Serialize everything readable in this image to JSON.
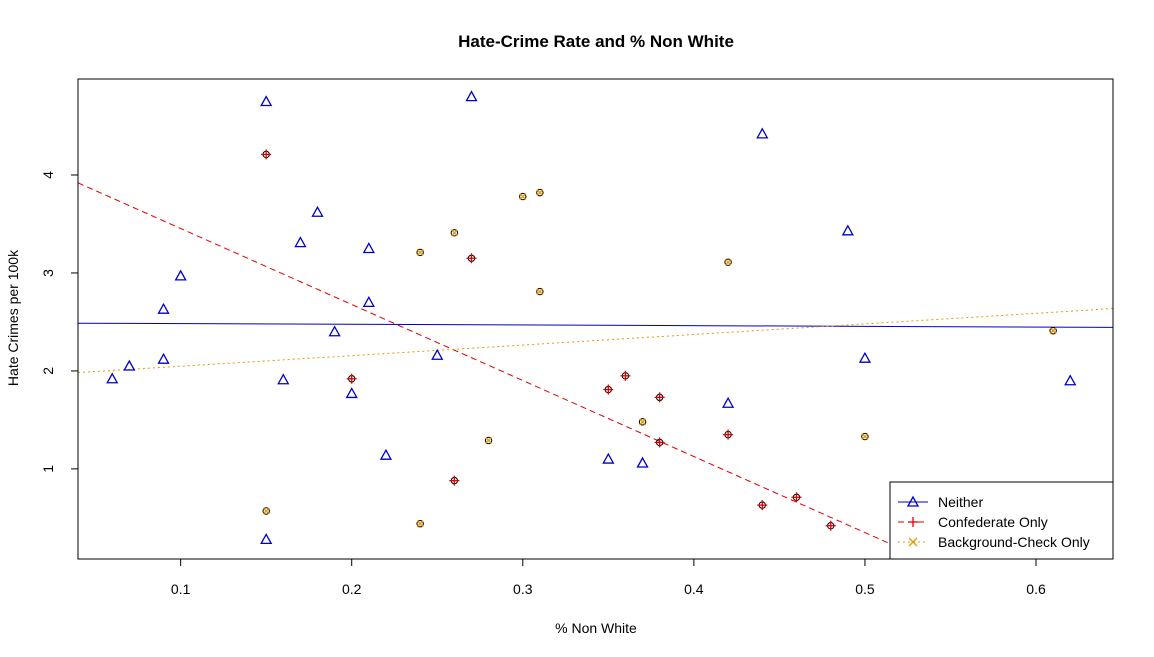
{
  "chart_data": {
    "type": "scatter",
    "title": "Hate-Crime Rate and % Non White",
    "xlabel": "% Non White",
    "ylabel": "Hate Crimes per 100k",
    "xlim": [
      0.04,
      0.645
    ],
    "ylim": [
      0.08,
      4.98
    ],
    "xticks": [
      0.1,
      0.2,
      0.3,
      0.4,
      0.5,
      0.6
    ],
    "xtick_labels": [
      "0.1",
      "0.2",
      "0.3",
      "0.4",
      "0.5",
      "0.6"
    ],
    "yticks": [
      1,
      2,
      3,
      4
    ],
    "ytick_labels": [
      "1",
      "2",
      "3",
      "4"
    ],
    "legend_position": "bottom-right",
    "series": [
      {
        "name": "Neither",
        "color": "#0000cc",
        "marker": "triangle",
        "line_style": "solid",
        "fit": {
          "intercept": 2.49,
          "slope": -0.07
        },
        "points": [
          [
            0.06,
            1.92
          ],
          [
            0.07,
            2.05
          ],
          [
            0.09,
            2.12
          ],
          [
            0.09,
            2.63
          ],
          [
            0.1,
            2.97
          ],
          [
            0.15,
            4.75
          ],
          [
            0.15,
            0.28
          ],
          [
            0.16,
            1.91
          ],
          [
            0.17,
            3.31
          ],
          [
            0.18,
            3.62
          ],
          [
            0.19,
            2.4
          ],
          [
            0.2,
            1.77
          ],
          [
            0.21,
            3.25
          ],
          [
            0.21,
            2.7
          ],
          [
            0.22,
            1.14
          ],
          [
            0.25,
            2.16
          ],
          [
            0.27,
            4.8
          ],
          [
            0.35,
            1.1
          ],
          [
            0.37,
            1.06
          ],
          [
            0.42,
            1.67
          ],
          [
            0.44,
            4.42
          ],
          [
            0.49,
            3.43
          ],
          [
            0.5,
            2.13
          ],
          [
            0.62,
            1.9
          ]
        ]
      },
      {
        "name": "Confederate Only",
        "color": "#dd0000",
        "marker": "plus",
        "line_style": "dashed",
        "fit": {
          "intercept": 4.23,
          "slope": -7.76
        },
        "points": [
          [
            0.15,
            4.21
          ],
          [
            0.2,
            1.92
          ],
          [
            0.26,
            0.88
          ],
          [
            0.27,
            3.15
          ],
          [
            0.35,
            1.81
          ],
          [
            0.36,
            1.95
          ],
          [
            0.38,
            1.73
          ],
          [
            0.38,
            1.27
          ],
          [
            0.42,
            1.35
          ],
          [
            0.44,
            0.63
          ],
          [
            0.46,
            0.71
          ],
          [
            0.48,
            0.42
          ]
        ]
      },
      {
        "name": "Background-Check Only",
        "color": "#e69900",
        "marker": "cross",
        "line_style": "dotted",
        "fit": {
          "intercept": 1.94,
          "slope": 1.08
        },
        "points": [
          [
            0.15,
            0.57
          ],
          [
            0.24,
            3.21
          ],
          [
            0.24,
            0.44
          ],
          [
            0.26,
            3.41
          ],
          [
            0.28,
            1.29
          ],
          [
            0.3,
            3.78
          ],
          [
            0.31,
            3.82
          ],
          [
            0.31,
            2.81
          ],
          [
            0.37,
            1.48
          ],
          [
            0.42,
            3.11
          ],
          [
            0.5,
            1.33
          ],
          [
            0.61,
            2.41
          ]
        ]
      }
    ]
  }
}
